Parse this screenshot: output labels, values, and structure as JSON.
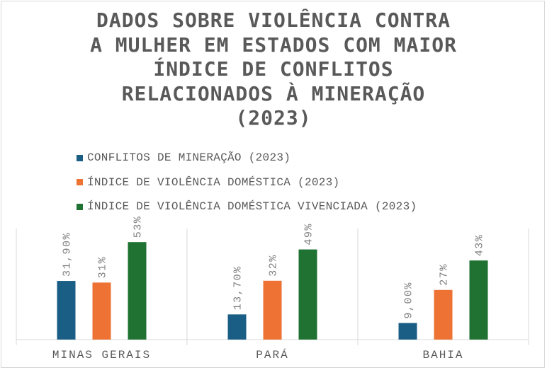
{
  "chart_data": {
    "type": "bar",
    "title_lines": [
      "DADOS SOBRE VIOLÊNCIA CONTRA",
      "A MULHER EM ESTADOS COM MAIOR",
      "ÍNDICE DE CONFLITOS",
      "RELACIONADOS À MINERAÇÃO",
      "(2023)"
    ],
    "categories": [
      "MINAS GERAIS",
      "PARÁ",
      "BAHIA"
    ],
    "series": [
      {
        "name": "CONFLITOS DE MINERAÇÃO (2023)",
        "color": "#1a5e86",
        "values": [
          31.9,
          13.7,
          9.0
        ],
        "labels": [
          "31,90%",
          "13,70%",
          "9,00%"
        ]
      },
      {
        "name": "ÍNDICE DE VIOLÊNCIA DOMÉSTICA (2023)",
        "color": "#ed7233",
        "values": [
          31,
          32,
          27
        ],
        "labels": [
          "31%",
          "32%",
          "27%"
        ]
      },
      {
        "name": "ÍNDICE DE VIOLÊNCIA DOMÉSTICA VIVENCIADA (2023)",
        "color": "#1f7232",
        "values": [
          53,
          49,
          43
        ],
        "labels": [
          "53%",
          "49%",
          "43%"
        ]
      }
    ],
    "ylim": [
      0,
      65
    ],
    "grid": false,
    "legend_position": "top"
  }
}
